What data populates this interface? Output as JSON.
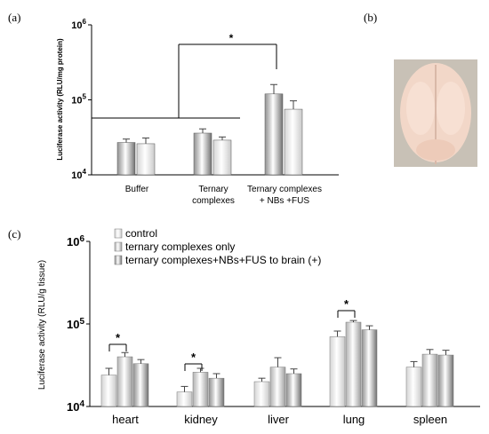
{
  "panels": {
    "a": "(a)",
    "b": "(b)",
    "c": "(c)"
  },
  "star": "*",
  "colors": {
    "dark": "#6f6f6f",
    "light": "#c9c9c9",
    "mid": "#9c9c9c"
  },
  "chart_data": [
    {
      "type": "bar",
      "scale": "log",
      "ylim": [
        10000,
        1000000
      ],
      "ylabel": "Luciferase activity (RLU/mg protein)",
      "yticks": [
        {
          "value": 10000,
          "base": "10",
          "exp": "4"
        },
        {
          "value": 100000,
          "base": "10",
          "exp": "5"
        },
        {
          "value": 1000000,
          "base": "10",
          "exp": "6"
        }
      ],
      "categories": [
        {
          "lines": [
            "Buffer"
          ]
        },
        {
          "lines": [
            "Ternary",
            "complexes"
          ]
        },
        {
          "lines": [
            "Ternary complexes",
            "+ NBs +FUS"
          ]
        }
      ],
      "values": [
        [
          27000,
          26000
        ],
        [
          36000,
          29000
        ],
        [
          120000,
          75000
        ]
      ],
      "errors": [
        [
          3000,
          5000
        ],
        [
          5000,
          3000
        ],
        [
          40000,
          22000
        ]
      ],
      "significance": "*"
    },
    {
      "type": "bar",
      "scale": "log",
      "ylim": [
        10000,
        1000000
      ],
      "ylabel": "Luciferase activity (RLU/g tissue)",
      "yticks": [
        {
          "value": 10000,
          "base": "10",
          "exp": "4"
        },
        {
          "value": 100000,
          "base": "10",
          "exp": "5"
        },
        {
          "value": 1000000,
          "base": "10",
          "exp": "6"
        }
      ],
      "categories": [
        "heart",
        "kidney",
        "liver",
        "lung",
        "spleen"
      ],
      "series": [
        {
          "name": "control",
          "values": [
            24000,
            15000,
            20000,
            70000,
            30000
          ],
          "errors": [
            5000,
            2500,
            2000,
            12000,
            5000
          ]
        },
        {
          "name": "ternary complexes only",
          "values": [
            40000,
            26000,
            30000,
            105000,
            43000
          ],
          "errors": [
            5000,
            3000,
            9000,
            5000,
            6000
          ]
        },
        {
          "name": "ternary complexes+NBs+FUS to brain (+)",
          "values": [
            33000,
            22000,
            25000,
            85000,
            42000
          ],
          "errors": [
            4000,
            3000,
            3500,
            10000,
            6000
          ]
        }
      ],
      "significance": "*"
    }
  ]
}
